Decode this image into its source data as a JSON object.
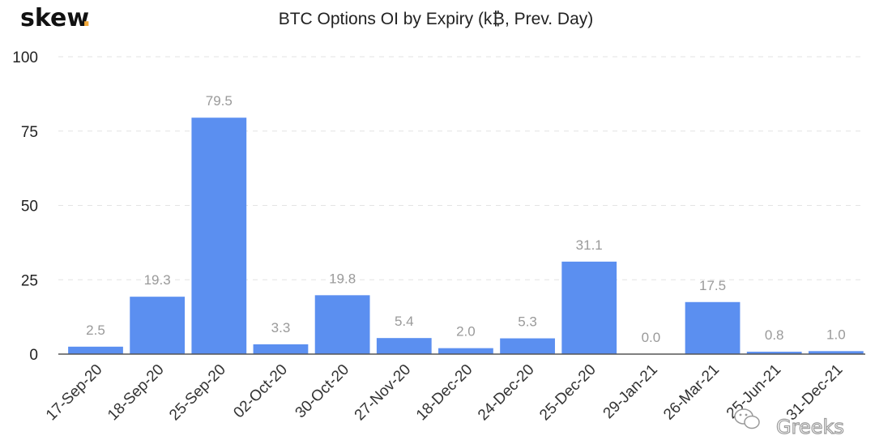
{
  "logo": {
    "text": "skew",
    "dot": ".",
    "dot_color": "#f2a93b"
  },
  "watermark": {
    "text": "Greeks",
    "icon": "wechat-icon"
  },
  "bar_color": "#5b8ff0",
  "chart_data": {
    "type": "bar",
    "title": "BTC Options OI by Expiry (k₿, Prev. Day)",
    "xlabel": "",
    "ylabel": "",
    "ylim": [
      0,
      100
    ],
    "yticks": [
      0,
      25,
      50,
      75,
      100
    ],
    "grid": true,
    "categories": [
      "17-Sep-20",
      "18-Sep-20",
      "25-Sep-20",
      "02-Oct-20",
      "30-Oct-20",
      "27-Nov-20",
      "18-Dec-20",
      "24-Dec-20",
      "25-Dec-20",
      "29-Jan-21",
      "26-Mar-21",
      "25-Jun-21",
      "31-Dec-21"
    ],
    "values": [
      2.5,
      19.3,
      79.5,
      3.3,
      19.8,
      5.4,
      2.0,
      5.3,
      31.1,
      0.0,
      17.5,
      0.8,
      1.0
    ],
    "value_labels": [
      "2.5",
      "19.3",
      "79.5",
      "3.3",
      "19.8",
      "5.4",
      "2.0",
      "5.3",
      "31.1",
      "0.0",
      "17.5",
      "0.8",
      "1.0"
    ]
  }
}
